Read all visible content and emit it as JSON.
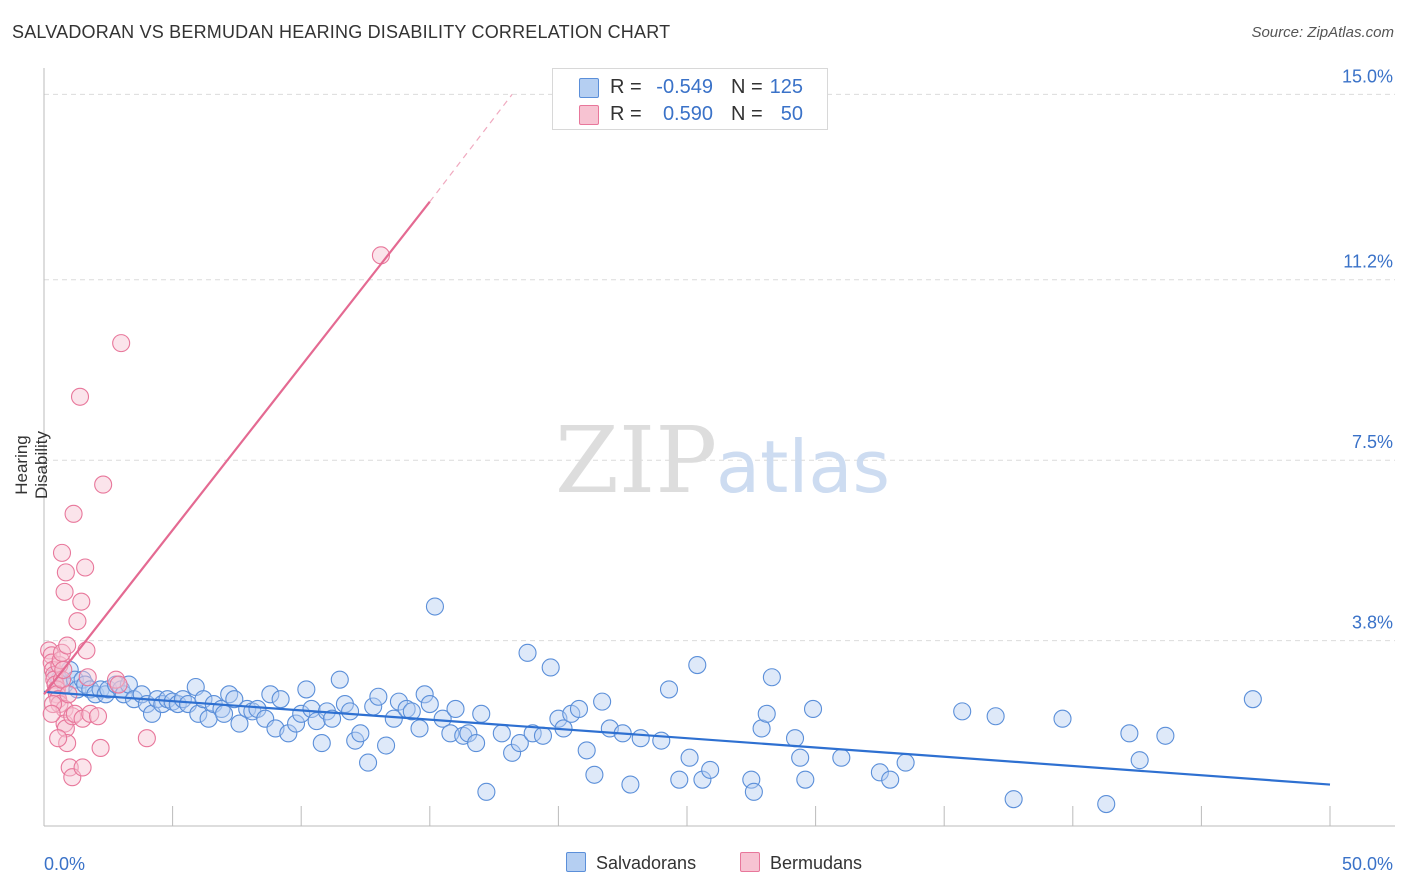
{
  "header": {
    "title": "SALVADORAN VS BERMUDAN HEARING DISABILITY CORRELATION CHART",
    "source": "Source: ZipAtlas.com"
  },
  "watermark": {
    "zip": "ZIP",
    "atlas": "atlas"
  },
  "legend": {
    "r_label": "R =",
    "n_label": "N =",
    "series": [
      {
        "name": "Salvadorans",
        "r": "-0.549",
        "n": "125",
        "fill": "#b5cff2",
        "stroke": "#5b8fd9"
      },
      {
        "name": "Bermudans",
        "r": "0.590",
        "n": "50",
        "fill": "#f7c3d2",
        "stroke": "#e8779b"
      }
    ]
  },
  "colors": {
    "blue_point": "#5b8fd9",
    "blue_line": "#2e70d1",
    "pink_point": "#e8779b",
    "pink_line": "#e46a92",
    "axis_text": "#3a72c8",
    "grid": "#dcdcdc"
  },
  "chart_data": {
    "type": "scatter",
    "title": "SALVADORAN VS BERMUDAN HEARING DISABILITY CORRELATION CHART",
    "xlabel": "",
    "ylabel": "Hearing Disability",
    "xlim": [
      0,
      50
    ],
    "ylim": [
      0,
      15.5
    ],
    "x_tick_labels": [
      "0.0%",
      "50.0%"
    ],
    "y_ticks": [
      3.8,
      7.5,
      11.2,
      15.0
    ],
    "y_tick_labels": [
      "3.8%",
      "7.5%",
      "11.2%",
      "15.0%"
    ],
    "grid": true,
    "series": [
      {
        "name": "Salvadorans",
        "trend": {
          "x": [
            0,
            50
          ],
          "y": [
            2.75,
            0.85
          ]
        },
        "points": [
          [
            0.5,
            3.1
          ],
          [
            0.6,
            3.0
          ],
          [
            0.8,
            2.9
          ],
          [
            1.0,
            3.2
          ],
          [
            1.2,
            3.0
          ],
          [
            1.3,
            2.8
          ],
          [
            1.5,
            3.0
          ],
          [
            1.6,
            2.9
          ],
          [
            1.8,
            2.8
          ],
          [
            2.0,
            2.7
          ],
          [
            2.2,
            2.8
          ],
          [
            2.4,
            2.7
          ],
          [
            2.5,
            2.8
          ],
          [
            2.8,
            2.9
          ],
          [
            3.0,
            2.8
          ],
          [
            3.1,
            2.7
          ],
          [
            3.3,
            2.9
          ],
          [
            3.5,
            2.6
          ],
          [
            3.8,
            2.7
          ],
          [
            4.0,
            2.5
          ],
          [
            4.2,
            2.3
          ],
          [
            4.4,
            2.6
          ],
          [
            4.6,
            2.5
          ],
          [
            4.8,
            2.6
          ],
          [
            5.0,
            2.55
          ],
          [
            5.2,
            2.5
          ],
          [
            5.4,
            2.6
          ],
          [
            5.6,
            2.5
          ],
          [
            5.9,
            2.85
          ],
          [
            6.0,
            2.3
          ],
          [
            6.2,
            2.6
          ],
          [
            6.4,
            2.2
          ],
          [
            6.6,
            2.5
          ],
          [
            6.9,
            2.4
          ],
          [
            7.0,
            2.3
          ],
          [
            7.2,
            2.7
          ],
          [
            7.4,
            2.6
          ],
          [
            7.6,
            2.1
          ],
          [
            7.9,
            2.4
          ],
          [
            8.1,
            2.35
          ],
          [
            8.3,
            2.4
          ],
          [
            8.6,
            2.2
          ],
          [
            8.8,
            2.7
          ],
          [
            9.0,
            2.0
          ],
          [
            9.2,
            2.6
          ],
          [
            9.5,
            1.9
          ],
          [
            9.8,
            2.1
          ],
          [
            10.0,
            2.3
          ],
          [
            10.2,
            2.8
          ],
          [
            10.4,
            2.4
          ],
          [
            10.6,
            2.15
          ],
          [
            10.8,
            1.7
          ],
          [
            11.0,
            2.35
          ],
          [
            11.2,
            2.2
          ],
          [
            11.5,
            3.0
          ],
          [
            11.7,
            2.5
          ],
          [
            11.9,
            2.35
          ],
          [
            12.1,
            1.75
          ],
          [
            12.3,
            1.9
          ],
          [
            12.6,
            1.3
          ],
          [
            12.8,
            2.45
          ],
          [
            13.0,
            2.65
          ],
          [
            13.3,
            1.65
          ],
          [
            13.6,
            2.2
          ],
          [
            13.8,
            2.55
          ],
          [
            14.1,
            2.4
          ],
          [
            14.3,
            2.35
          ],
          [
            14.6,
            2.0
          ],
          [
            14.8,
            2.7
          ],
          [
            15.0,
            2.5
          ],
          [
            15.2,
            4.5
          ],
          [
            15.5,
            2.2
          ],
          [
            15.8,
            1.9
          ],
          [
            16.0,
            2.4
          ],
          [
            16.3,
            1.85
          ],
          [
            16.5,
            1.9
          ],
          [
            16.8,
            1.7
          ],
          [
            17.0,
            2.3
          ],
          [
            17.2,
            0.7
          ],
          [
            17.8,
            1.9
          ],
          [
            18.2,
            1.5
          ],
          [
            18.5,
            1.7
          ],
          [
            18.8,
            3.55
          ],
          [
            19.0,
            1.9
          ],
          [
            19.4,
            1.85
          ],
          [
            19.7,
            3.25
          ],
          [
            20.0,
            2.2
          ],
          [
            20.2,
            2.0
          ],
          [
            20.5,
            2.3
          ],
          [
            20.8,
            2.4
          ],
          [
            21.1,
            1.55
          ],
          [
            21.4,
            1.05
          ],
          [
            21.7,
            2.55
          ],
          [
            22.0,
            2.0
          ],
          [
            22.5,
            1.9
          ],
          [
            22.8,
            0.85
          ],
          [
            23.2,
            1.8
          ],
          [
            24.0,
            1.75
          ],
          [
            24.3,
            2.8
          ],
          [
            24.7,
            0.95
          ],
          [
            25.1,
            1.4
          ],
          [
            25.4,
            3.3
          ],
          [
            25.6,
            0.95
          ],
          [
            25.9,
            1.15
          ],
          [
            27.5,
            0.95
          ],
          [
            27.6,
            0.7
          ],
          [
            27.9,
            2.0
          ],
          [
            28.1,
            2.3
          ],
          [
            28.3,
            3.05
          ],
          [
            29.2,
            1.8
          ],
          [
            29.4,
            1.4
          ],
          [
            29.6,
            0.95
          ],
          [
            29.9,
            2.4
          ],
          [
            31.0,
            1.4
          ],
          [
            32.5,
            1.1
          ],
          [
            32.9,
            0.95
          ],
          [
            33.5,
            1.3
          ],
          [
            35.7,
            2.35
          ],
          [
            37.0,
            2.25
          ],
          [
            37.7,
            0.55
          ],
          [
            39.6,
            2.2
          ],
          [
            41.3,
            0.45
          ],
          [
            42.2,
            1.9
          ],
          [
            42.6,
            1.35
          ],
          [
            43.6,
            1.85
          ],
          [
            47.0,
            2.6
          ]
        ]
      },
      {
        "name": "Bermudans",
        "trend": {
          "x": [
            0,
            15
          ],
          "y": [
            2.7,
            12.8
          ]
        },
        "trend_dashed": {
          "x": [
            15,
            18.2
          ],
          "y": [
            12.8,
            15.0
          ]
        },
        "points": [
          [
            0.2,
            3.6
          ],
          [
            0.3,
            3.5
          ],
          [
            0.3,
            3.35
          ],
          [
            0.35,
            3.2
          ],
          [
            0.4,
            3.1
          ],
          [
            0.4,
            3.0
          ],
          [
            0.45,
            2.9
          ],
          [
            0.5,
            2.8
          ],
          [
            0.5,
            2.7
          ],
          [
            0.55,
            2.6
          ],
          [
            0.6,
            2.5
          ],
          [
            0.6,
            3.3
          ],
          [
            0.65,
            3.4
          ],
          [
            0.7,
            3.55
          ],
          [
            0.7,
            3.0
          ],
          [
            0.75,
            3.2
          ],
          [
            0.8,
            2.4
          ],
          [
            0.8,
            2.1
          ],
          [
            0.85,
            2.0
          ],
          [
            0.9,
            1.7
          ],
          [
            0.35,
            2.5
          ],
          [
            0.3,
            2.3
          ],
          [
            0.55,
            1.8
          ],
          [
            0.7,
            5.6
          ],
          [
            0.8,
            4.8
          ],
          [
            0.85,
            5.2
          ],
          [
            0.9,
            3.7
          ],
          [
            0.95,
            2.7
          ],
          [
            1.0,
            1.2
          ],
          [
            1.1,
            1.0
          ],
          [
            1.1,
            2.25
          ],
          [
            1.15,
            6.4
          ],
          [
            1.2,
            2.3
          ],
          [
            1.3,
            4.2
          ],
          [
            1.4,
            8.8
          ],
          [
            1.45,
            4.6
          ],
          [
            1.5,
            2.2
          ],
          [
            1.5,
            1.2
          ],
          [
            1.6,
            5.3
          ],
          [
            1.65,
            3.6
          ],
          [
            1.7,
            3.05
          ],
          [
            1.8,
            2.3
          ],
          [
            2.1,
            2.25
          ],
          [
            2.2,
            1.6
          ],
          [
            2.3,
            7.0
          ],
          [
            2.8,
            3.0
          ],
          [
            2.9,
            2.9
          ],
          [
            3.0,
            9.9
          ],
          [
            4.0,
            1.8
          ],
          [
            13.1,
            11.7
          ]
        ]
      }
    ]
  }
}
